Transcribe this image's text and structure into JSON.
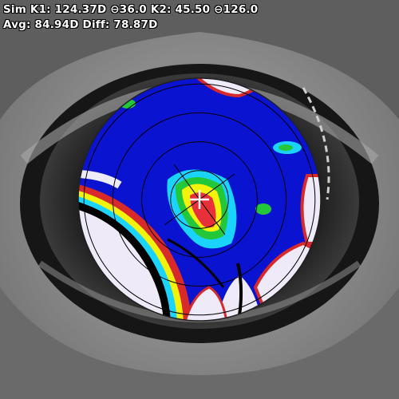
{
  "readout": {
    "line1": "Sim K1: 124.37D ⊖36.0 K2: 45.50 ⊖126.0",
    "line2": "Avg: 84.94D Diff: 78.87D"
  },
  "map": {
    "type": "corneal-topography",
    "rings": 4,
    "axis_meridians_deg": [
      36,
      126
    ],
    "colors": {
      "background": "#0a14d0",
      "low": "#eeeaf8",
      "mid": "#1ad3ff",
      "green": "#23c83a",
      "yellow": "#f2f20a",
      "high": "#e8303a",
      "grid": "#000000"
    }
  }
}
